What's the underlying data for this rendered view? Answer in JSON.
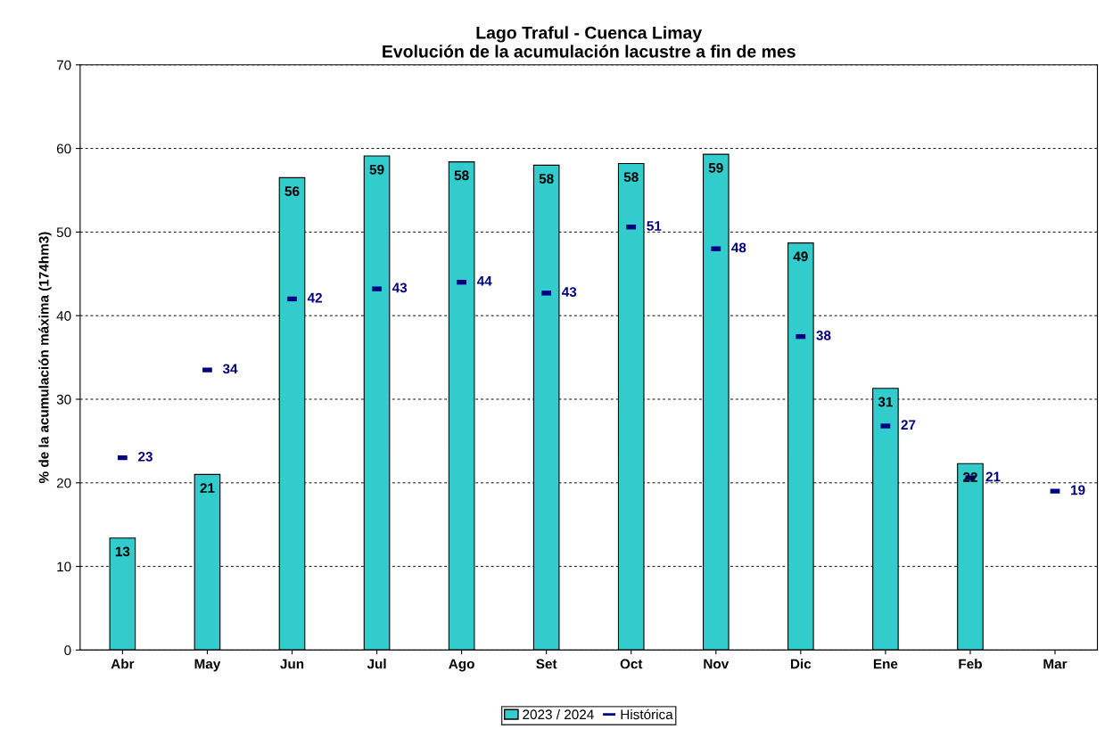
{
  "chart_data": {
    "type": "bar",
    "title": "Lago Traful - Cuenca Limay\nEvolución de la acumulación lacustre a fin de mes",
    "ylabel": "% de la acumulación máxima (174hm3)",
    "categories": [
      "Abr",
      "May",
      "Jun",
      "Jul",
      "Ago",
      "Set",
      "Oct",
      "Nov",
      "Dic",
      "Ene",
      "Feb",
      "Mar"
    ],
    "series": [
      {
        "name": "2023 / 2024",
        "color": "#33cccc",
        "values": [
          13.4,
          21.0,
          56.5,
          59.1,
          58.4,
          58.0,
          58.2,
          59.3,
          48.7,
          31.3,
          22.3,
          null
        ],
        "value_labels": [
          "13",
          "21",
          "56",
          "59",
          "58",
          "58",
          "58",
          "59",
          "49",
          "31",
          "22",
          null
        ]
      },
      {
        "name": "Histórica",
        "type": "scatter",
        "color": "#000080",
        "values": [
          23.0,
          33.5,
          42.0,
          43.2,
          44.0,
          42.7,
          50.6,
          48.0,
          37.5,
          26.8,
          20.6,
          19.0
        ],
        "value_labels": [
          "23",
          "34",
          "42",
          "43",
          "44",
          "43",
          "51",
          "48",
          "38",
          "27",
          "21",
          "19"
        ]
      }
    ],
    "ylim": [
      0,
      70
    ],
    "yticks": [
      0,
      10,
      20,
      30,
      40,
      50,
      60,
      70
    ],
    "grid": "y",
    "legend": "bottom"
  }
}
